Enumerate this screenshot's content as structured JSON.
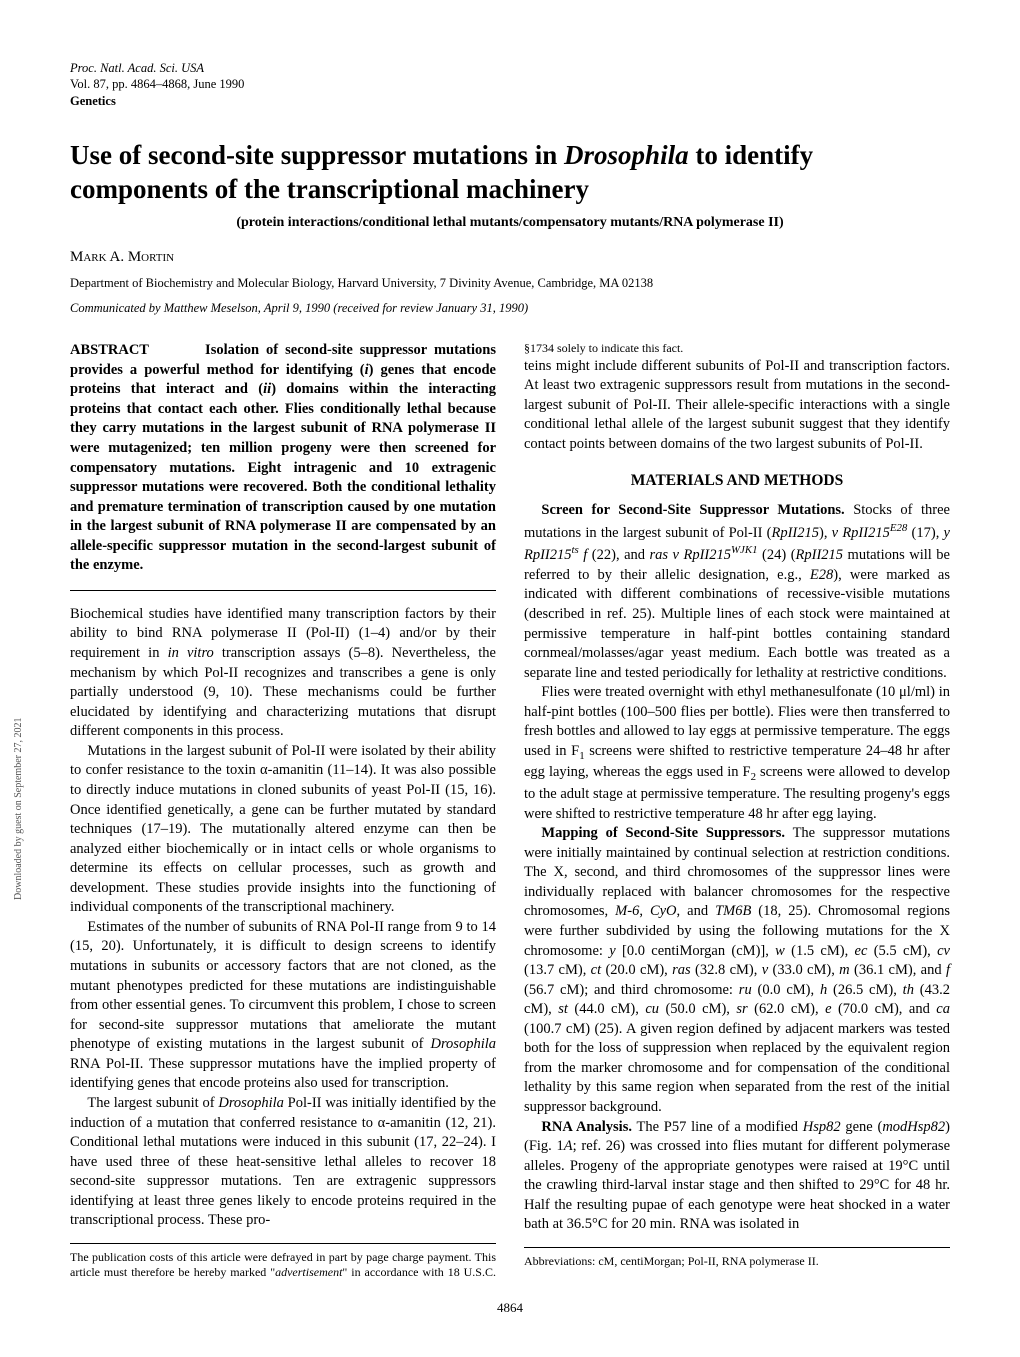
{
  "journal": {
    "line1": "Proc. Natl. Acad. Sci. USA",
    "line2": "Vol. 87, pp. 4864–4868, June 1990",
    "line3": "Genetics"
  },
  "title": {
    "prefix": "Use of second-site suppressor mutations in ",
    "genus": "Drosophila",
    "suffix": " to identify components of the transcriptional machinery"
  },
  "subtitle": "(protein interactions/conditional lethal mutants/compensatory mutants/RNA polymerase II)",
  "author": "Mark A. Mortin",
  "affiliation": "Department of Biochemistry and Molecular Biology, Harvard University, 7 Divinity Avenue, Cambridge, MA 02138",
  "communicated": "Communicated by Matthew Meselson, April 9, 1990 (received for review January 31, 1990)",
  "abstract": {
    "heading": "ABSTRACT",
    "body_html": "Isolation of second-site suppressor mutations provides a powerful method for identifying (<span class='ital'>i</span>) genes that encode proteins that interact and (<span class='ital'>ii</span>) domains within the interacting proteins that contact each other. Flies conditionally lethal because they carry mutations in the largest subunit of RNA polymerase II were mutagenized; ten million progeny were then screened for compensatory mutations. Eight intragenic and 10 extragenic suppressor mutations were recovered. Both the conditional lethality and premature termination of transcription caused by one mutation in the largest subunit of RNA polymerase II are compensated by an allele-specific suppressor mutation in the second-largest subunit of the enzyme."
  },
  "body": {
    "p1": "Biochemical studies have identified many transcription factors by their ability to bind RNA polymerase II (Pol-II) (1–4) and/or by their requirement in <span class='ital'>in vitro</span> transcription assays (5–8). Nevertheless, the mechanism by which Pol-II recognizes and transcribes a gene is only partially understood (9, 10). These mechanisms could be further elucidated by identifying and characterizing mutations that disrupt different components in this process.",
    "p2": "Mutations in the largest subunit of Pol-II were isolated by their ability to confer resistance to the toxin α-amanitin (11–14). It was also possible to directly induce mutations in cloned subunits of yeast Pol-II (15, 16). Once identified genetically, a gene can be further mutated by standard techniques (17–19). The mutationally altered enzyme can then be analyzed either biochemically or in intact cells or whole organisms to determine its effects on cellular processes, such as growth and development. These studies provide insights into the functioning of individual components of the transcriptional machinery.",
    "p3": "Estimates of the number of subunits of RNA Pol-II range from 9 to 14 (15, 20). Unfortunately, it is difficult to design screens to identify mutations in subunits or accessory factors that are not cloned, as the mutant phenotypes predicted for these mutations are indistinguishable from other essential genes. To circumvent this problem, I chose to screen for second-site suppressor mutations that ameliorate the mutant phenotype of existing mutations in the largest subunit of <span class='ital'>Drosophila</span> RNA Pol-II. These suppressor mutations have the implied property of identifying genes that encode proteins also used for transcription.",
    "p4": "The largest subunit of <span class='ital'>Drosophila</span> Pol-II was initially identified by the induction of a mutation that conferred resistance to α-amanitin (12, 21). Conditional lethal mutations were induced in this subunit (17, 22–24). I have used three of these heat-sensitive lethal alleles to recover 18 second-site suppressor mutations. Ten are extragenic suppressors identifying at least three genes likely to encode proteins required in the transcriptional process. These pro-",
    "p5": "teins might include different subunits of Pol-II and transcription factors. At least two extragenic suppressors result from mutations in the second-largest subunit of Pol-II. Their allele-specific interactions with a single conditional lethal allele of the largest subunit suggest that they identify contact points between domains of the two largest subunits of Pol-II."
  },
  "methods": {
    "heading": "MATERIALS AND METHODS",
    "p1_runin": "Screen for Second-Site Suppressor Mutations.",
    "p1": " Stocks of three mutations in the largest subunit of Pol-II (<span class='ital'>RpII215</span>), <span class='ital'>v RpII215<sup>E28</sup></span> (17), <span class='ital'>y RpII215<sup>ts</sup> f</span> (22), and <span class='ital'>ras v RpII215<sup>WJK1</sup></span> (24) (<span class='ital'>RpII215</span> mutations will be referred to by their allelic designation, e.g., <span class='ital'>E28</span>), were marked as indicated with different combinations of recessive-visible mutations (described in ref. 25). Multiple lines of each stock were maintained at permissive temperature in half-pint bottles containing standard cornmeal/molasses/agar yeast medium. Each bottle was treated as a separate line and tested periodically for lethality at restrictive conditions.",
    "p2": "Flies were treated overnight with ethyl methanesulfonate (10 μl/ml) in half-pint bottles (100–500 flies per bottle). Flies were then transferred to fresh bottles and allowed to lay eggs at permissive temperature. The eggs used in F<sub>1</sub> screens were shifted to restrictive temperature 24–48 hr after egg laying, whereas the eggs used in F<sub>2</sub> screens were allowed to develop to the adult stage at permissive temperature. The resulting progeny's eggs were shifted to restrictive temperature 48 hr after egg laying.",
    "p3_runin": "Mapping of Second-Site Suppressors.",
    "p3": " The suppressor mutations were initially maintained by continual selection at restriction conditions. The X, second, and third chromosomes of the suppressor lines were individually replaced with balancer chromosomes for the respective chromosomes, <span class='ital'>M-6</span>, <span class='ital'>CyO</span>, and <span class='ital'>TM6B</span> (18, 25). Chromosomal regions were further subdivided by using the following mutations for the X chromosome: <span class='ital'>y</span> [0.0 centiMorgan (cM)], <span class='ital'>w</span> (1.5 cM), <span class='ital'>ec</span> (5.5 cM), <span class='ital'>cv</span> (13.7 cM), <span class='ital'>ct</span> (20.0 cM), <span class='ital'>ras</span> (32.8 cM), <span class='ital'>v</span> (33.0 cM), <span class='ital'>m</span> (36.1 cM), and <span class='ital'>f</span> (56.7 cM); and third chromosome: <span class='ital'>ru</span> (0.0 cM), <span class='ital'>h</span> (26.5 cM), <span class='ital'>th</span> (43.2 cM), <span class='ital'>st</span> (44.0 cM), <span class='ital'>cu</span> (50.0 cM), <span class='ital'>sr</span> (62.0 cM), <span class='ital'>e</span> (70.0 cM), and <span class='ital'>ca</span> (100.7 cM) (25). A given region defined by adjacent markers was tested both for the loss of suppression when replaced by the equivalent region from the marker chromosome and for compensation of the conditional lethality by this same region when separated from the rest of the initial suppressor background.",
    "p4_runin": "RNA Analysis.",
    "p4": " The P57 line of a modified <span class='ital'>Hsp82</span> gene (<span class='ital'>modHsp82</span>) (Fig. 1<span class='ital'>A</span>; ref. 26) was crossed into flies mutant for different polymerase alleles. Progeny of the appropriate genotypes were raised at 19°C until the crawling third-larval instar stage and then shifted to 29°C for 48 hr. Half the resulting pupae of each genotype were heat shocked in a water bath at 36.5°C for 20 min. RNA was isolated in"
  },
  "footnote_left": "The publication costs of this article were defrayed in part by page charge payment. This article must therefore be hereby marked \"<span class='adv'>advertisement</span>\" in accordance with 18 U.S.C. §1734 solely to indicate this fact.",
  "footnote_right": "Abbreviations: cM, centiMorgan; Pol-II, RNA polymerase II.",
  "page_number": "4864",
  "sidebar": "Downloaded by guest on September 27, 2021"
}
